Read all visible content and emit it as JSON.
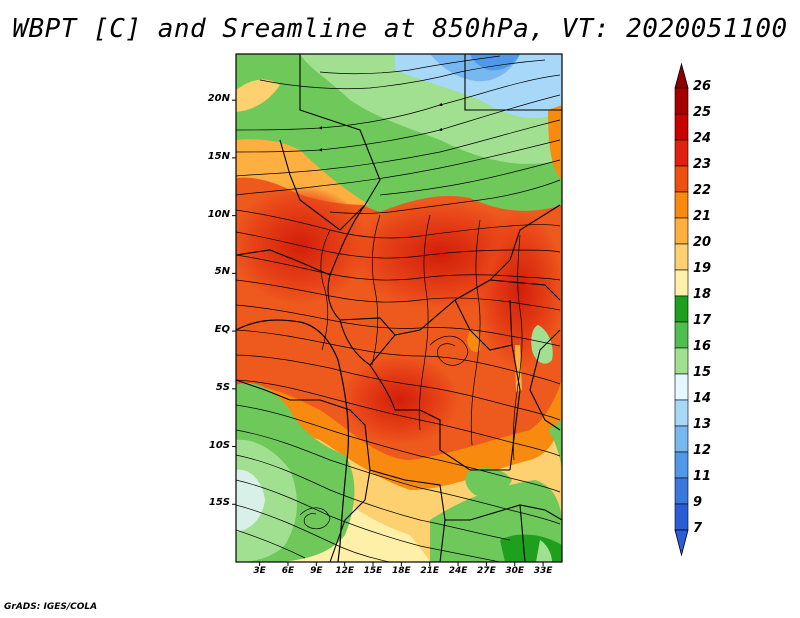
{
  "title": "WBPT [C] and Sreamline at 850hPa, VT: 2020051100",
  "credit": "GrADS: IGES/COLA",
  "lat_labels": [
    "20N",
    "15N",
    "10N",
    "5N",
    "EQ",
    "5S",
    "10S",
    "15S"
  ],
  "lat_values": [
    20,
    15,
    10,
    5,
    0,
    -5,
    -10,
    -15
  ],
  "lon_labels": [
    "3E",
    "6E",
    "9E",
    "12E",
    "15E",
    "18E",
    "21E",
    "24E",
    "27E",
    "30E",
    "33E"
  ],
  "lon_values": [
    3,
    6,
    9,
    12,
    15,
    18,
    21,
    24,
    27,
    30,
    33
  ],
  "extent": {
    "lon_min": 0.5,
    "lon_max": 35,
    "lat_min": -20,
    "lat_max": 24
  },
  "colorbar": {
    "labels": [
      "26",
      "25",
      "24",
      "23",
      "22",
      "21",
      "20",
      "19",
      "18",
      "17",
      "16",
      "15",
      "14",
      "13",
      "12",
      "11",
      "9",
      "7"
    ],
    "colors": [
      "#a50000",
      "#c80000",
      "#e02010",
      "#ee5010",
      "#f88a10",
      "#fdb040",
      "#fdd070",
      "#fef0a8",
      "#1ea01e",
      "#50be50",
      "#a0e090",
      "#e6f8ff",
      "#a8d8f8",
      "#78b8f0",
      "#5098e8",
      "#3a78de",
      "#2a5ed6"
    ],
    "top_arrow_color": "#8c0000",
    "bottom_arrow_color": "#2a5ed6"
  },
  "colors": {
    "hot": "#e63214",
    "warm": "#f58a2a",
    "cool": "#6ec85a",
    "cold": "#a8d8f8"
  }
}
